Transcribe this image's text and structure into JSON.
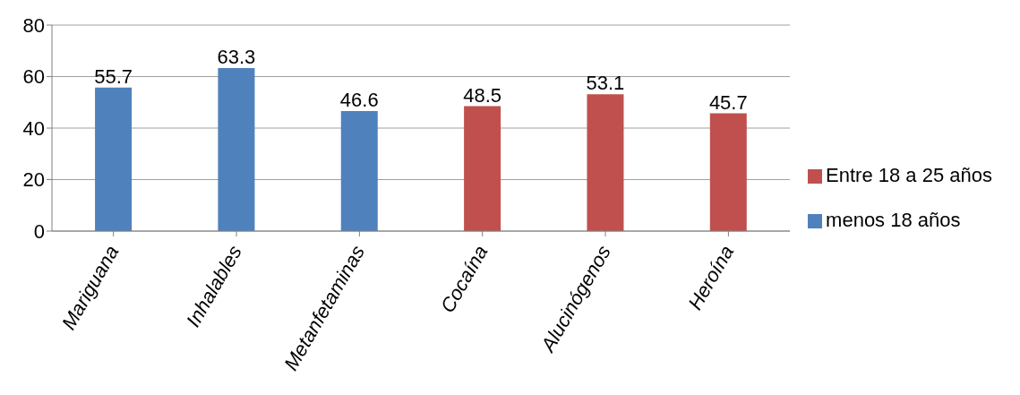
{
  "chart_data": {
    "type": "bar",
    "categories": [
      "Mariguana",
      "Inhalables",
      "Metanfetaminas",
      "Cocaína",
      "Alucinógenos",
      "Heroína"
    ],
    "series": [
      {
        "name": "menos 18 años",
        "color": "#4f81bd",
        "values": [
          55.7,
          63.3,
          46.6,
          null,
          null,
          null
        ]
      },
      {
        "name": "Entre 18 a 25 años",
        "color": "#c0504d",
        "values": [
          null,
          null,
          null,
          48.5,
          53.1,
          45.7
        ]
      }
    ],
    "stacked": true,
    "ylim": [
      0,
      80
    ],
    "yticks": [
      0,
      20,
      40,
      60,
      80
    ],
    "grid": "y",
    "legend": "right",
    "data_labels": true
  }
}
